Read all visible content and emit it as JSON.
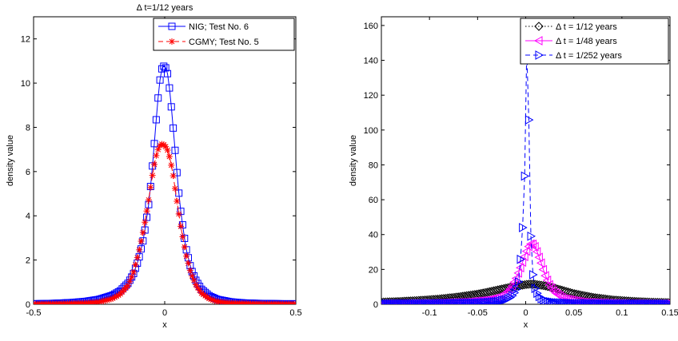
{
  "chart_data": [
    {
      "type": "line",
      "title": "Δ t=1/12 years",
      "xlabel": "x",
      "ylabel": "density value",
      "xlim": [
        -0.5,
        0.5
      ],
      "ylim": [
        0,
        13
      ],
      "xticks": [
        -0.5,
        0,
        0.5
      ],
      "yticks": [
        0,
        2,
        4,
        6,
        8,
        10,
        12
      ],
      "xtick_labels": [
        "-0.5",
        "0",
        "0.5"
      ],
      "ytick_labels": [
        "0",
        "2",
        "4",
        "6",
        "8",
        "10",
        "12"
      ],
      "grid": false,
      "legend": "top-right",
      "series": [
        {
          "name": "NIG; Test No. 6",
          "color": "#0000ff",
          "marker": "square",
          "line": "solid",
          "x": [
            -0.5,
            -0.45,
            -0.4,
            -0.35,
            -0.3,
            -0.25,
            -0.2,
            -0.17,
            -0.14,
            -0.12,
            -0.1,
            -0.08,
            -0.06,
            -0.05,
            -0.04,
            -0.03,
            -0.02,
            -0.01,
            0,
            0.01,
            0.02,
            0.03,
            0.04,
            0.05,
            0.06,
            0.08,
            0.1,
            0.12,
            0.14,
            0.17,
            0.2,
            0.25,
            0.3,
            0.35,
            0.4,
            0.45,
            0.5
          ],
          "y": [
            0.02,
            0.03,
            0.05,
            0.08,
            0.13,
            0.22,
            0.4,
            0.6,
            0.95,
            1.35,
            2.0,
            3.0,
            4.6,
            5.8,
            7.2,
            8.7,
            10.0,
            10.7,
            10.8,
            10.5,
            9.6,
            8.3,
            6.9,
            5.5,
            4.3,
            2.6,
            1.6,
            1.05,
            0.68,
            0.38,
            0.22,
            0.11,
            0.06,
            0.04,
            0.03,
            0.02,
            0.02
          ]
        },
        {
          "name": "CGMY; Test No. 5",
          "color": "#ff0000",
          "marker": "star",
          "line": "dashed",
          "x": [
            -0.5,
            -0.45,
            -0.4,
            -0.35,
            -0.3,
            -0.25,
            -0.2,
            -0.17,
            -0.14,
            -0.12,
            -0.1,
            -0.08,
            -0.06,
            -0.05,
            -0.04,
            -0.03,
            -0.02,
            -0.01,
            0,
            0.01,
            0.02,
            0.03,
            0.04,
            0.05,
            0.06,
            0.08,
            0.1,
            0.12,
            0.14,
            0.17,
            0.2,
            0.25,
            0.3,
            0.35,
            0.4,
            0.45,
            0.5
          ],
          "y": [
            0.01,
            0.01,
            0.02,
            0.03,
            0.05,
            0.1,
            0.25,
            0.45,
            0.85,
            1.4,
            2.3,
            3.4,
            4.8,
            5.6,
            6.3,
            6.85,
            7.15,
            7.25,
            7.2,
            7.0,
            6.6,
            6.0,
            5.2,
            4.4,
            3.6,
            2.3,
            1.4,
            0.85,
            0.5,
            0.25,
            0.12,
            0.05,
            0.03,
            0.02,
            0.01,
            0.01,
            0.01
          ]
        }
      ]
    },
    {
      "type": "line",
      "title": "",
      "xlabel": "x",
      "ylabel": "density value",
      "xlim": [
        -0.15,
        0.15
      ],
      "ylim": [
        0,
        165
      ],
      "xticks": [
        -0.1,
        -0.05,
        0,
        0.05,
        0.1,
        0.15
      ],
      "yticks": [
        0,
        20,
        40,
        60,
        80,
        100,
        120,
        140,
        160
      ],
      "xtick_labels": [
        "-0.1",
        "-0.05",
        "0",
        "0.05",
        "0.1",
        "0.15"
      ],
      "ytick_labels": [
        "0",
        "20",
        "40",
        "60",
        "80",
        "100",
        "120",
        "140",
        "160"
      ],
      "grid": false,
      "legend": "top-right",
      "series": [
        {
          "name": "Δ t = 1/12 years",
          "color": "#000000",
          "marker": "diamond",
          "line": "dotted",
          "x": [
            -0.15,
            -0.13,
            -0.11,
            -0.09,
            -0.07,
            -0.05,
            -0.04,
            -0.03,
            -0.02,
            -0.01,
            0,
            0.005,
            0.01,
            0.02,
            0.03,
            0.04,
            0.05,
            0.07,
            0.09,
            0.11,
            0.13,
            0.15
          ],
          "y": [
            1.2,
            1.6,
            2.2,
            3.0,
            4.2,
            5.8,
            6.9,
            8.1,
            9.3,
            10.4,
            11.3,
            11.6,
            11.4,
            10.6,
            9.2,
            7.7,
            6.1,
            3.9,
            2.5,
            1.7,
            1.2,
            0.9
          ]
        },
        {
          "name": "Δ t = 1/48 years",
          "color": "#ff00ff",
          "marker": "triangle-left",
          "line": "solid",
          "x": [
            -0.15,
            -0.1,
            -0.06,
            -0.04,
            -0.03,
            -0.02,
            -0.015,
            -0.01,
            -0.005,
            0,
            0.003,
            0.006,
            0.009,
            0.012,
            0.016,
            0.02,
            0.025,
            0.03,
            0.04,
            0.06,
            0.1,
            0.15
          ],
          "y": [
            0.2,
            0.5,
            1.2,
            2.3,
            3.6,
            6.5,
            9.5,
            14.5,
            21.5,
            29,
            33,
            35,
            34,
            30,
            24,
            17,
            11,
            7,
            3.2,
            1.1,
            0.4,
            0.2
          ]
        },
        {
          "name": "Δ t = 1/252 years",
          "color": "#0000ff",
          "marker": "triangle-right",
          "line": "dashed",
          "x": [
            -0.15,
            -0.1,
            -0.05,
            -0.03,
            -0.02,
            -0.015,
            -0.01,
            -0.007,
            -0.004,
            -0.002,
            0,
            0.001,
            0.002,
            0.003,
            0.004,
            0.005,
            0.007,
            0.01,
            0.015,
            0.02,
            0.03,
            0.05,
            0.1,
            0.15
          ],
          "y": [
            0.3,
            0.4,
            0.8,
            1.6,
            2.8,
            4.2,
            8,
            14,
            36,
            57,
            93,
            145,
            162,
            117,
            70,
            44,
            19,
            8,
            3.5,
            2,
            1,
            0.5,
            0.3,
            0.2
          ]
        }
      ]
    }
  ]
}
